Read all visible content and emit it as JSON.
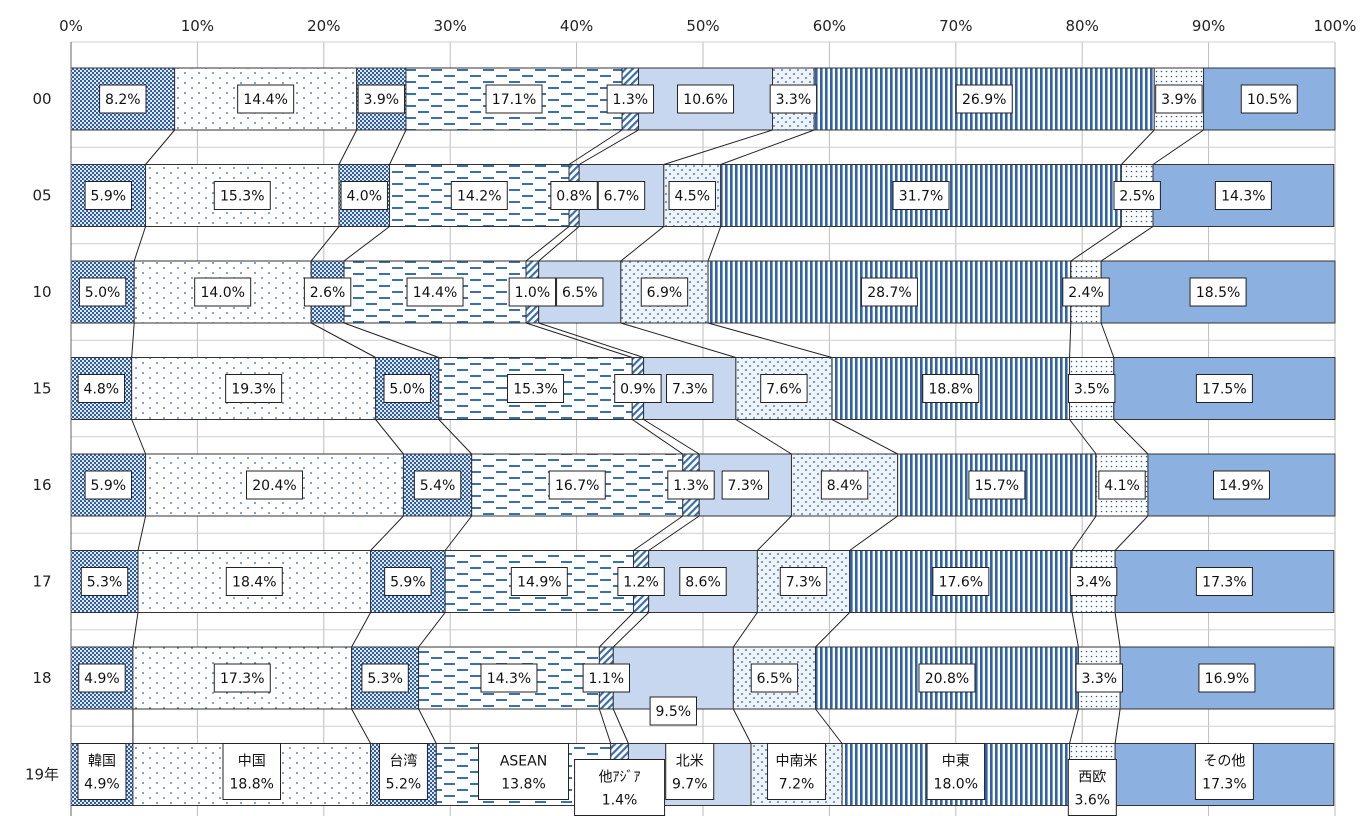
{
  "chart_data": {
    "type": "bar",
    "orientation": "horizontal",
    "stacking": "percent",
    "xlim": [
      0,
      100
    ],
    "x_ticks": [
      "0%",
      "10%",
      "20%",
      "30%",
      "40%",
      "50%",
      "60%",
      "70%",
      "80%",
      "90%",
      "100%"
    ],
    "x_axis_position": "top",
    "grid": true,
    "legend": "none (series named inside the 19年 bar)",
    "categories": [
      "00",
      "05",
      "10",
      "15",
      "16",
      "17",
      "18",
      "19年"
    ],
    "series": [
      {
        "name": "韓国",
        "values": [
          8.2,
          5.9,
          5.0,
          4.8,
          5.9,
          5.3,
          4.9,
          4.9
        ],
        "pattern": "checker",
        "color": "#2f5f9e"
      },
      {
        "name": "中国",
        "values": [
          14.4,
          15.3,
          14.0,
          19.3,
          20.4,
          18.4,
          17.3,
          18.8
        ],
        "pattern": "dots-sparse",
        "color": "#2f5f9e"
      },
      {
        "name": "台湾",
        "values": [
          3.9,
          4.0,
          2.6,
          5.0,
          5.4,
          5.9,
          5.3,
          5.2
        ],
        "pattern": "checker",
        "color": "#2f5f9e"
      },
      {
        "name": "ASEAN",
        "values": [
          17.1,
          14.2,
          14.4,
          15.3,
          16.7,
          14.9,
          14.3,
          13.8
        ],
        "pattern": "dashes",
        "color": "#3a6fb0"
      },
      {
        "name": "他ｱｼﾞｱ",
        "values": [
          1.3,
          0.8,
          1.0,
          0.9,
          1.3,
          1.2,
          1.1,
          1.4
        ],
        "pattern": "diagonal",
        "color": "#3a6fb0"
      },
      {
        "name": "北米",
        "values": [
          10.6,
          6.7,
          6.5,
          7.3,
          7.3,
          8.6,
          9.5,
          9.7
        ],
        "pattern": "solid",
        "color": "#c6d7ef"
      },
      {
        "name": "中南米",
        "values": [
          3.3,
          4.5,
          6.9,
          7.6,
          8.4,
          7.3,
          6.5,
          7.2
        ],
        "pattern": "dots-dense",
        "color": "#4a7fc0"
      },
      {
        "name": "中東",
        "values": [
          26.9,
          31.7,
          28.7,
          18.8,
          15.7,
          17.6,
          20.8,
          18.0
        ],
        "pattern": "vertical",
        "color": "#2f62a8"
      },
      {
        "name": "西欧",
        "values": [
          3.9,
          2.5,
          2.4,
          3.5,
          4.1,
          3.4,
          3.3,
          3.6
        ],
        "pattern": "dots-fine",
        "color": "#2f5f9e"
      },
      {
        "name": "その他",
        "values": [
          10.5,
          14.3,
          18.5,
          17.5,
          14.9,
          17.3,
          16.9,
          17.3
        ],
        "pattern": "solid",
        "color": "#8cb0e0"
      }
    ],
    "data_labels": [
      [
        "8.2%",
        "14.4%",
        "3.9%",
        "17.1%",
        "1.3%",
        "10.6%",
        "3.3%",
        "26.9%",
        "3.9%",
        "10.5%"
      ],
      [
        "5.9%",
        "15.3%",
        "4.0%",
        "14.2%",
        "0.8%",
        "6.7%",
        "4.5%",
        "31.7%",
        "2.5%",
        "14.3%"
      ],
      [
        "5.0%",
        "14.0%",
        "2.6%",
        "14.4%",
        "1.0%",
        "6.5%",
        "6.9%",
        "28.7%",
        "2.4%",
        "18.5%"
      ],
      [
        "4.8%",
        "19.3%",
        "5.0%",
        "15.3%",
        "0.9%",
        "7.3%",
        "7.6%",
        "18.8%",
        "3.5%",
        "17.5%"
      ],
      [
        "5.9%",
        "20.4%",
        "5.4%",
        "16.7%",
        "1.3%",
        "7.3%",
        "8.4%",
        "15.7%",
        "4.1%",
        "14.9%"
      ],
      [
        "5.3%",
        "18.4%",
        "5.9%",
        "14.9%",
        "1.2%",
        "8.6%",
        "7.3%",
        "17.6%",
        "3.4%",
        "17.3%"
      ],
      [
        "4.9%",
        "17.3%",
        "5.3%",
        "14.3%",
        "1.1%",
        "9.5%",
        "6.5%",
        "20.8%",
        "3.3%",
        "16.9%"
      ],
      [
        "4.9%",
        "18.8%",
        "5.2%",
        "13.8%",
        "1.4%",
        "9.7%",
        "7.2%",
        "18.0%",
        "3.6%",
        "17.3%"
      ]
    ],
    "connector_lines": true
  }
}
